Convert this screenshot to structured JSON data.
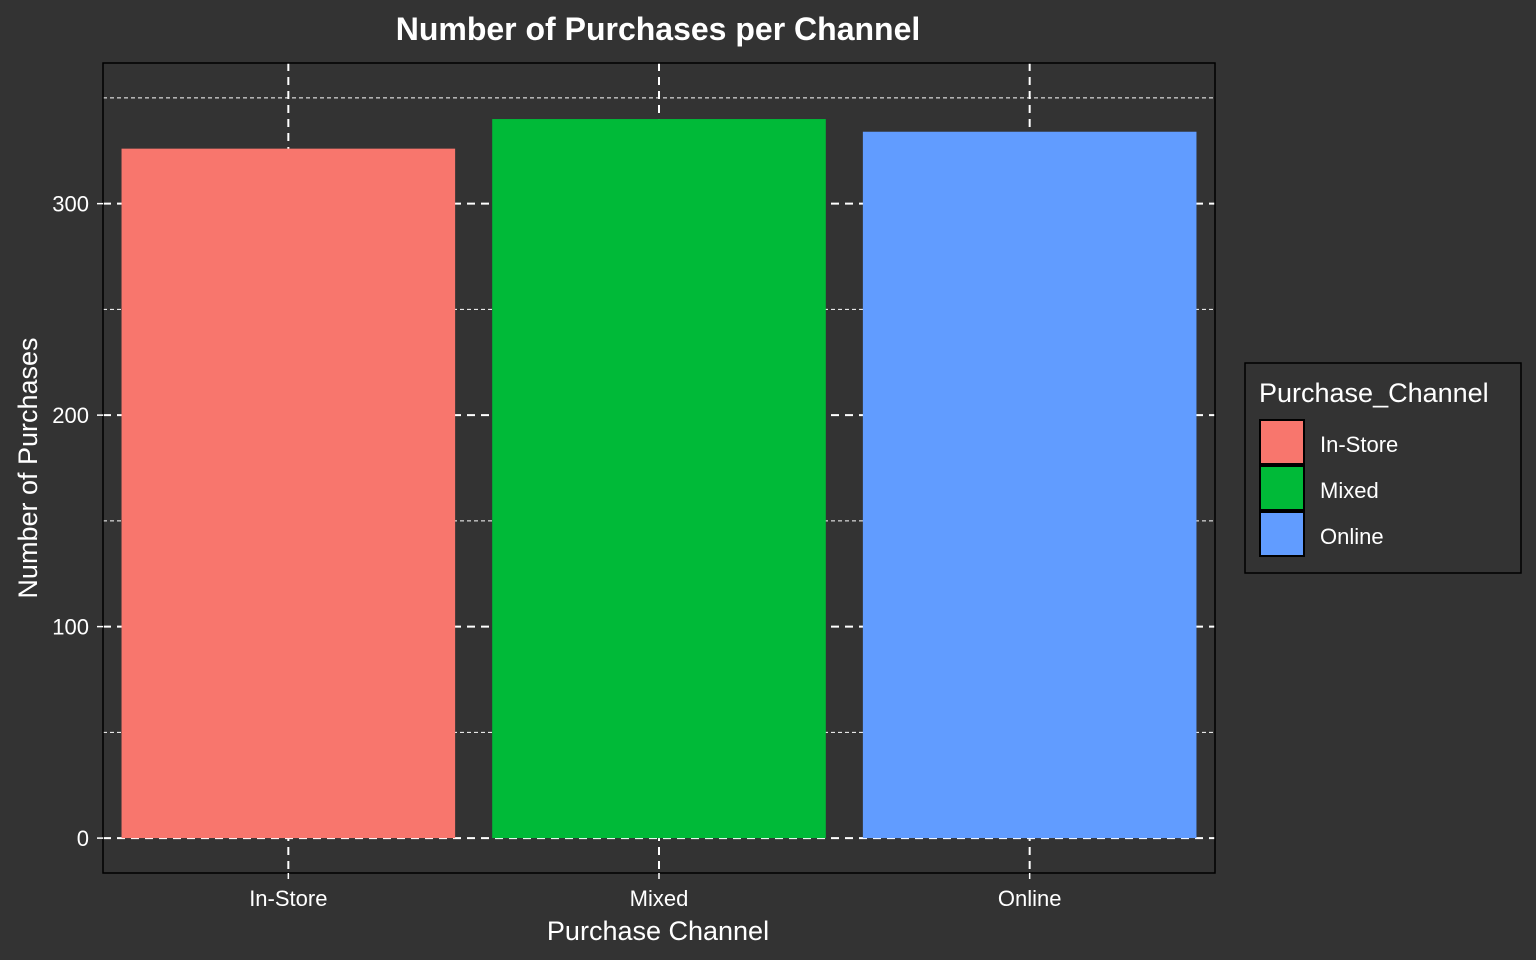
{
  "chart_data": {
    "type": "bar",
    "title": "Number of Purchases per Channel",
    "xlabel": "Purchase Channel",
    "ylabel": "Number of Purchases",
    "categories": [
      "In-Store",
      "Mixed",
      "Online"
    ],
    "values": [
      326,
      340,
      334
    ],
    "colors": [
      "#F8766D",
      "#00BA38",
      "#619CFF"
    ],
    "ylim": [
      -16.5,
      366.5
    ],
    "yticks": [
      0,
      100,
      200,
      300
    ],
    "ytick_labels": [
      "0",
      "100",
      "200",
      "300"
    ],
    "minor_yticks": [
      50,
      150,
      250,
      350
    ],
    "grid": true,
    "legend": {
      "title": "Purchase_Channel",
      "position": "right",
      "entries": [
        "In-Store",
        "Mixed",
        "Online"
      ]
    },
    "background": "#333333",
    "panel_border": "#000000",
    "grid_color": "#ffffff"
  }
}
